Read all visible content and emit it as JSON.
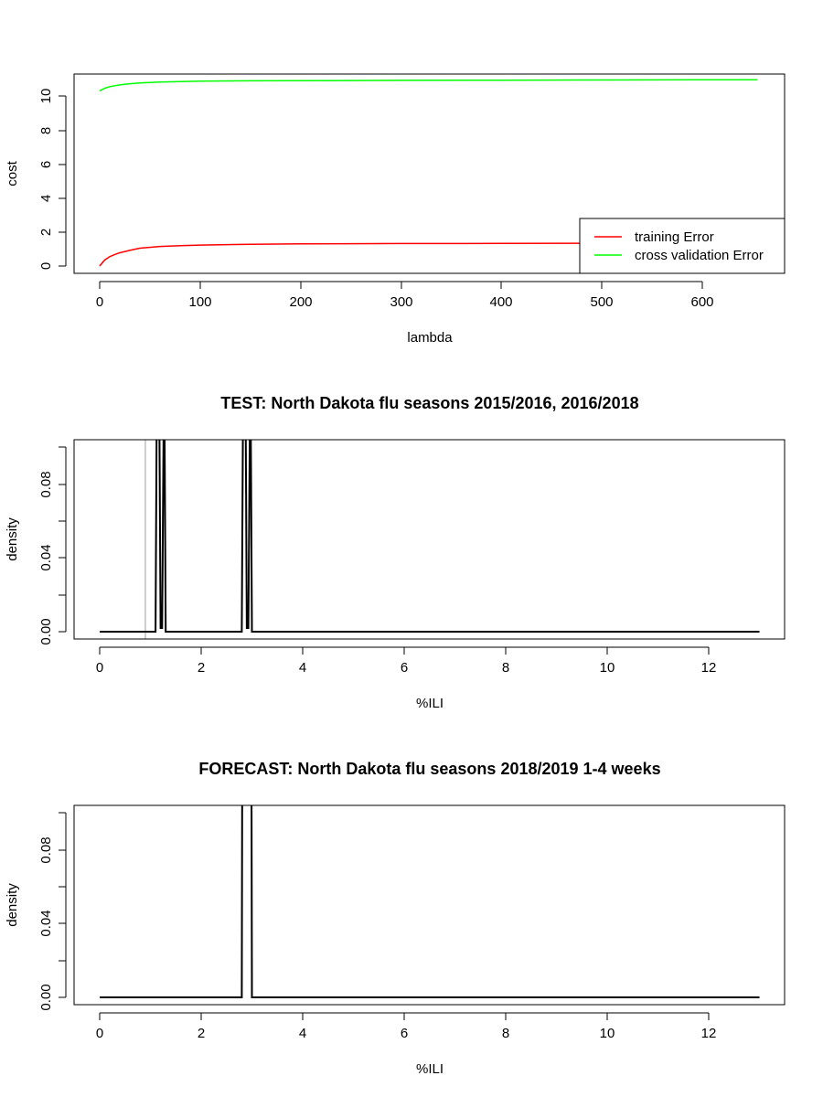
{
  "chart_data": [
    {
      "type": "line",
      "title": "",
      "xlabel": "lambda",
      "ylabel": "cost",
      "xlim": [
        0,
        655
      ],
      "ylim": [
        0,
        11
      ],
      "x_ticks": [
        "0",
        "100",
        "200",
        "300",
        "400",
        "500",
        "600"
      ],
      "y_ticks": [
        "0",
        "2",
        "4",
        "6",
        "8",
        "10"
      ],
      "grid": false,
      "legend": {
        "position": "bottom-right",
        "entries": [
          "training Error",
          "cross validation Error"
        ]
      },
      "series": [
        {
          "name": "training Error",
          "color": "#ff0000",
          "x": [
            0,
            5,
            10,
            15,
            20,
            30,
            40,
            60,
            80,
            100,
            150,
            200,
            300,
            400,
            500,
            600,
            655
          ],
          "y": [
            0,
            0.35,
            0.55,
            0.68,
            0.78,
            0.92,
            1.05,
            1.15,
            1.2,
            1.23,
            1.28,
            1.3,
            1.32,
            1.33,
            1.34,
            1.35,
            1.35
          ]
        },
        {
          "name": "cross validation Error",
          "color": "#00ff00",
          "x": [
            0,
            5,
            10,
            20,
            30,
            40,
            60,
            80,
            100,
            150,
            200,
            300,
            400,
            500,
            600,
            655
          ],
          "y": [
            10.3,
            10.45,
            10.55,
            10.65,
            10.72,
            10.77,
            10.82,
            10.85,
            10.87,
            10.89,
            10.9,
            10.92,
            10.93,
            10.94,
            10.95,
            10.95
          ]
        }
      ]
    },
    {
      "type": "line",
      "title": "TEST: North Dakota  flu seasons 2015/2016, 2016/2018",
      "xlabel": "%ILI",
      "ylabel": "density",
      "xlim": [
        0,
        13
      ],
      "ylim": [
        0,
        0.1
      ],
      "x_ticks": [
        "0",
        "2",
        "4",
        "6",
        "8",
        "10",
        "12"
      ],
      "y_ticks": [
        "0.00",
        "0.04",
        "0.08"
      ],
      "grid": false,
      "reference_line": {
        "x": 0.9,
        "color": "#bebebe"
      },
      "series": [
        {
          "color": "#000000",
          "x": [
            0,
            1.1,
            1.13,
            1.17,
            1.2,
            1.23,
            1.27,
            1.3,
            2.8,
            2.83,
            2.87,
            2.9,
            2.93,
            2.97,
            3.0,
            13
          ],
          "y": [
            0,
            0,
            0.15,
            0.15,
            0.002,
            0.002,
            0.15,
            0.0,
            0,
            0.15,
            0.15,
            0.002,
            0.002,
            0.15,
            0.0,
            0
          ]
        }
      ]
    },
    {
      "type": "line",
      "title": "FORECAST: North Dakota flu seasons 2018/2019 1-4 weeks",
      "xlabel": "%ILI",
      "ylabel": "density",
      "xlim": [
        0,
        13
      ],
      "ylim": [
        0,
        0.1
      ],
      "x_ticks": [
        "0",
        "2",
        "4",
        "6",
        "8",
        "10",
        "12"
      ],
      "y_ticks": [
        "0.00",
        "0.04",
        "0.08"
      ],
      "grid": false,
      "series": [
        {
          "color": "#000000",
          "x": [
            0,
            2.8,
            2.81,
            2.99,
            3.0,
            13
          ],
          "y": [
            0,
            0,
            0.15,
            0.15,
            0,
            0
          ]
        }
      ]
    }
  ]
}
